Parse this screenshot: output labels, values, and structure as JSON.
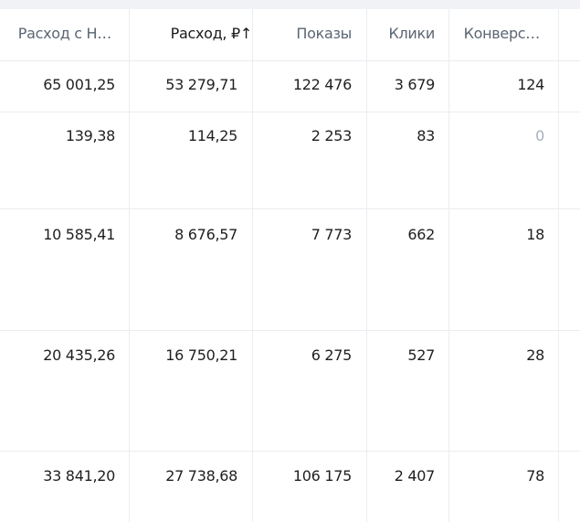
{
  "table": {
    "header": [
      "Расход с Н…",
      "Расход, ₽↑",
      "Показы",
      "Клики",
      "Конверс…"
    ],
    "rows": [
      [
        "65 001,25",
        "53 279,71",
        "122 476",
        "3 679",
        "124"
      ],
      [
        "139,38",
        "114,25",
        "2 253",
        "83",
        "0"
      ],
      [
        "10 585,41",
        "8 676,57",
        "7 773",
        "662",
        "18"
      ],
      [
        "20 435,26",
        "16 750,21",
        "6 275",
        "527",
        "28"
      ],
      [
        "33 841,20",
        "27 738,68",
        "106 175",
        "2 407",
        "78"
      ]
    ]
  }
}
